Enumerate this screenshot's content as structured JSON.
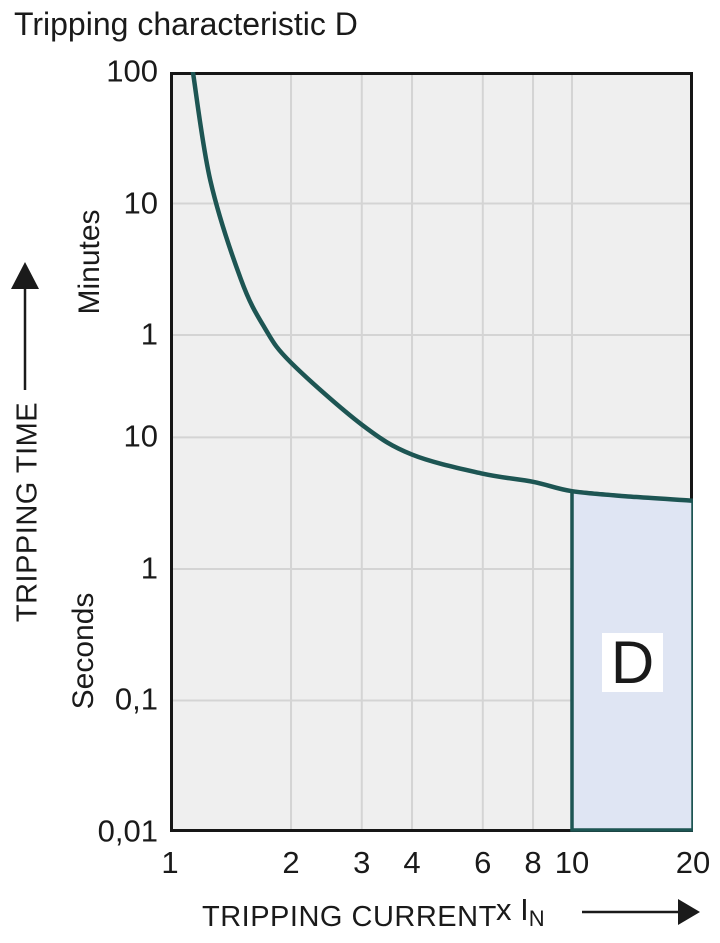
{
  "title": "Tripping characteristic D",
  "colors": {
    "curve": "#1d5553",
    "region_fill": "#dfe5f3",
    "region_border": "#1d5553",
    "plot_bg": "#efefef",
    "grid": "#d4d4d4",
    "axis_border": "#161616",
    "text": "#1a1a1a",
    "label_box_bg": "#ffffff"
  },
  "y_axis": {
    "title": "TRIPPING TIME",
    "unit_upper": "Minutes",
    "unit_lower": "Seconds",
    "ticks": [
      {
        "label": "100",
        "seconds": 6000
      },
      {
        "label": "10",
        "seconds": 600
      },
      {
        "label": "1",
        "seconds": 60
      },
      {
        "label": "10",
        "seconds": 10
      },
      {
        "label": "1",
        "seconds": 1
      },
      {
        "label": "0,1",
        "seconds": 0.1
      },
      {
        "label": "0,01",
        "seconds": 0.01
      }
    ]
  },
  "x_axis": {
    "title": "TRIPPING CURRENT",
    "multiplier_label": "x I",
    "multiplier_sub": "N",
    "ticks": [
      {
        "label": "1",
        "value": 1
      },
      {
        "label": "2",
        "value": 2
      },
      {
        "label": "3",
        "value": 3
      },
      {
        "label": "4",
        "value": 4
      },
      {
        "label": "6",
        "value": 6
      },
      {
        "label": "8",
        "value": 8
      },
      {
        "label": "10",
        "value": 10
      },
      {
        "label": "20",
        "value": 20
      }
    ]
  },
  "chart_data": {
    "type": "line",
    "title": "Tripping characteristic D",
    "xlabel": "TRIPPING CURRENT x IN",
    "ylabel": "TRIPPING TIME",
    "x_scale": "log",
    "y_scale": "log",
    "xlim": [
      1,
      20
    ],
    "ylim_seconds": [
      0.01,
      6000
    ],
    "grid": true,
    "curve_points_xIN_vs_seconds": [
      [
        1.14,
        6000
      ],
      [
        1.26,
        900
      ],
      [
        1.5,
        160
      ],
      [
        1.72,
        68
      ],
      [
        2,
        37
      ],
      [
        3,
        12.5
      ],
      [
        4,
        7.4
      ],
      [
        6,
        5.3
      ],
      [
        8,
        4.6
      ],
      [
        10,
        3.9
      ],
      [
        14,
        3.55
      ],
      [
        20,
        3.3
      ]
    ],
    "region": {
      "label": "D",
      "x_from": 10,
      "x_to": 20,
      "y_bottom_seconds": 0.01,
      "top_seconds_at_x_from": 3.9,
      "top_seconds_at_x_to": 3.3
    }
  }
}
